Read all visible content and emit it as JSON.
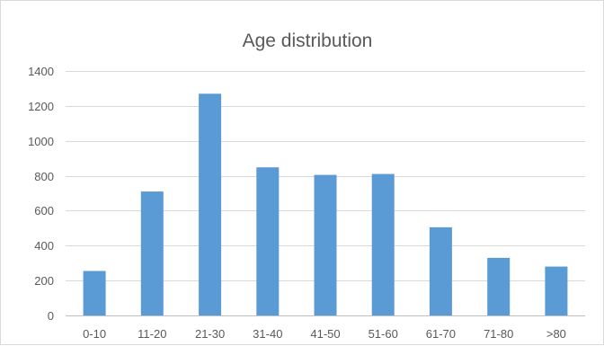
{
  "chart_data": {
    "type": "bar",
    "title": "Age distribution",
    "categories": [
      "0-10",
      "11-20",
      "21-30",
      "31-40",
      "41-50",
      "51-60",
      "61-70",
      "71-80",
      ">80"
    ],
    "values": [
      255,
      710,
      1270,
      848,
      805,
      810,
      505,
      330,
      280
    ],
    "xlabel": "",
    "ylabel": "",
    "ylim": [
      0,
      1400
    ],
    "yticks": [
      0,
      200,
      400,
      600,
      800,
      1000,
      1200,
      1400
    ],
    "grid": true,
    "legend": "none",
    "bar_color": "#5b9bd5"
  }
}
